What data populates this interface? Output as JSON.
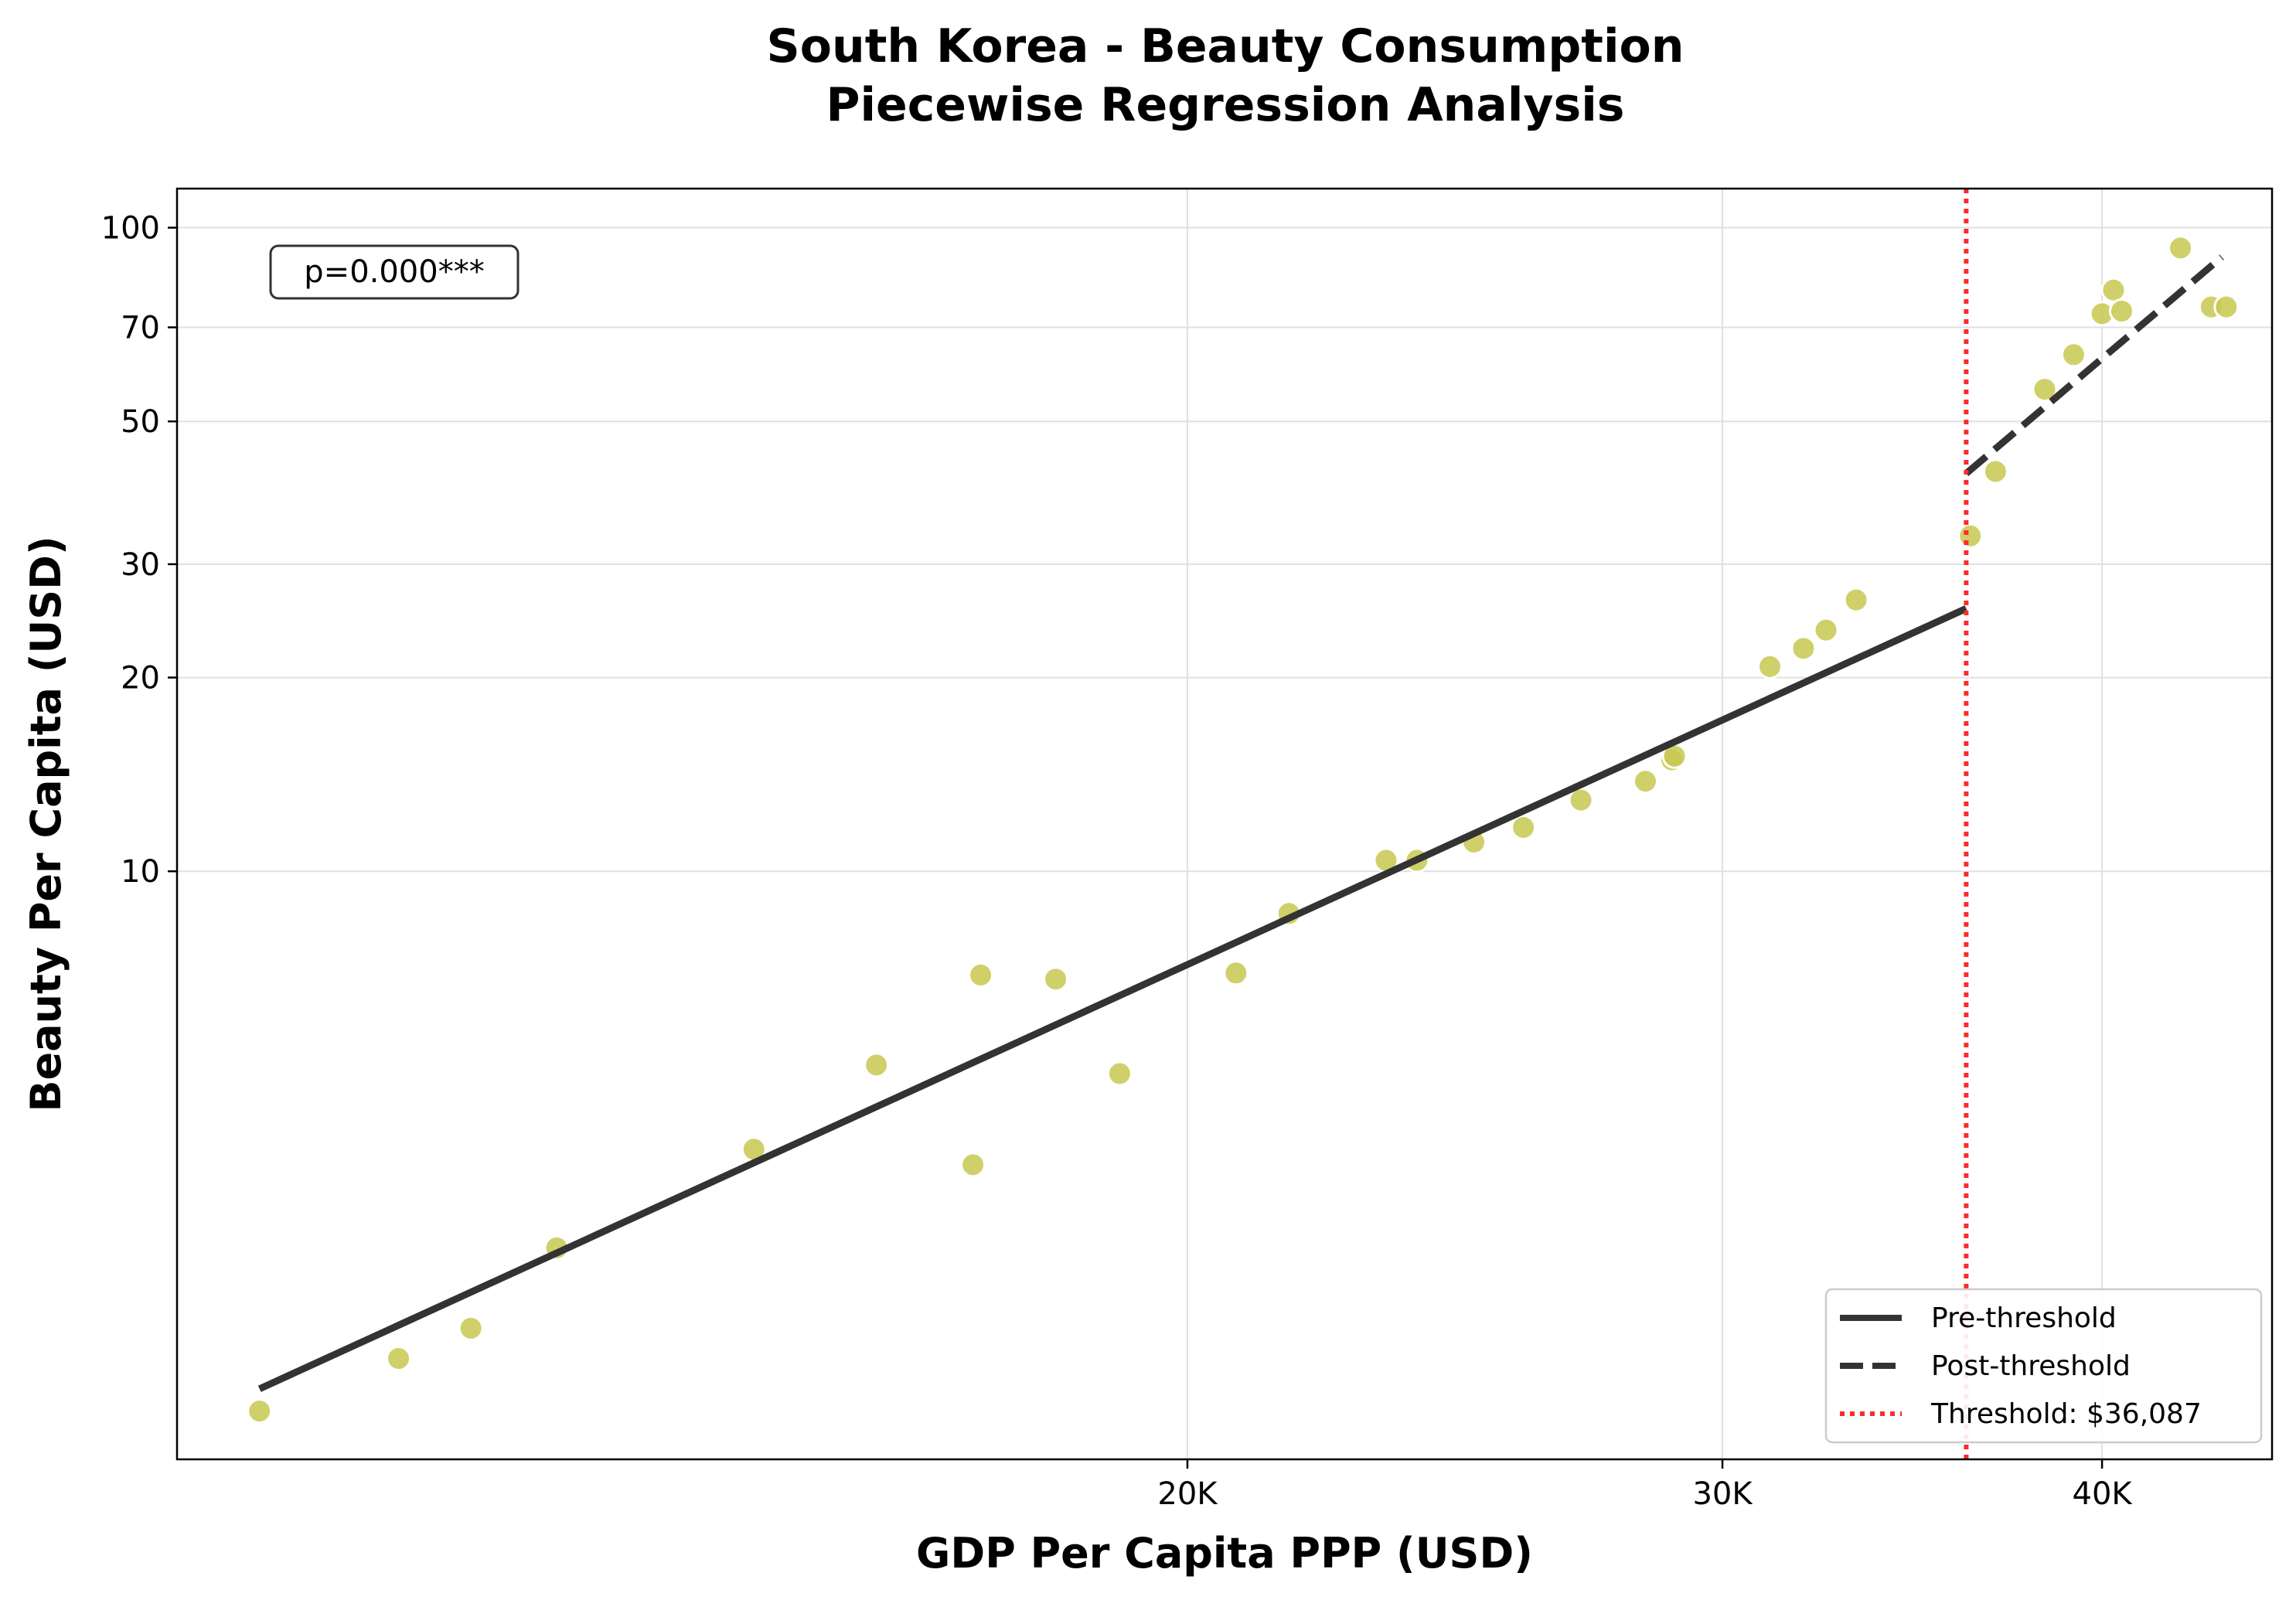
{
  "chart_data": {
    "type": "scatter",
    "title": [
      "South Korea - Beauty Consumption",
      "Piecewise Regression Analysis"
    ],
    "xlabel": "GDP Per Capita PPP (USD)",
    "ylabel": "Beauty Per Capita (USD)",
    "x_scale": "log",
    "y_scale": "log",
    "xlim": [
      9300,
      45500
    ],
    "ylim": [
      1.22,
      115
    ],
    "x_ticks": [
      {
        "value": 20000,
        "label": "20K"
      },
      {
        "value": 30000,
        "label": "30K"
      },
      {
        "value": 40000,
        "label": "40K"
      }
    ],
    "y_ticks": [
      {
        "value": 10,
        "label": "10"
      },
      {
        "value": 20,
        "label": "20"
      },
      {
        "value": 30,
        "label": "30"
      },
      {
        "value": 50,
        "label": "50"
      },
      {
        "value": 70,
        "label": "70"
      },
      {
        "value": 100,
        "label": "100"
      }
    ],
    "grid": true,
    "point_color": "#c8c850",
    "points": [
      {
        "x": 9900,
        "y": 1.45
      },
      {
        "x": 11000,
        "y": 1.75
      },
      {
        "x": 11620,
        "y": 1.95
      },
      {
        "x": 12400,
        "y": 2.6
      },
      {
        "x": 14400,
        "y": 3.7
      },
      {
        "x": 15800,
        "y": 5.0
      },
      {
        "x": 17000,
        "y": 3.5
      },
      {
        "x": 17100,
        "y": 6.9
      },
      {
        "x": 18100,
        "y": 6.8
      },
      {
        "x": 19000,
        "y": 4.85
      },
      {
        "x": 20750,
        "y": 6.95
      },
      {
        "x": 21600,
        "y": 8.6
      },
      {
        "x": 23250,
        "y": 10.4
      },
      {
        "x": 23800,
        "y": 10.4
      },
      {
        "x": 24850,
        "y": 11.1
      },
      {
        "x": 25800,
        "y": 11.7
      },
      {
        "x": 26950,
        "y": 12.9
      },
      {
        "x": 28300,
        "y": 13.8
      },
      {
        "x": 28870,
        "y": 14.9
      },
      {
        "x": 28930,
        "y": 15.1
      },
      {
        "x": 31100,
        "y": 20.8
      },
      {
        "x": 31900,
        "y": 22.2
      },
      {
        "x": 32450,
        "y": 23.7
      },
      {
        "x": 33200,
        "y": 26.4
      },
      {
        "x": 36200,
        "y": 33.2
      },
      {
        "x": 36900,
        "y": 41.8
      },
      {
        "x": 38300,
        "y": 56.1
      },
      {
        "x": 39150,
        "y": 63.5
      },
      {
        "x": 40000,
        "y": 73.5
      },
      {
        "x": 40350,
        "y": 80.0
      },
      {
        "x": 40600,
        "y": 74.2
      },
      {
        "x": 42450,
        "y": 93.0
      },
      {
        "x": 43450,
        "y": 75.3
      },
      {
        "x": 43950,
        "y": 75.3
      }
    ],
    "series": [
      {
        "name": "Pre-threshold",
        "style": "solid",
        "color": "#333333",
        "x": [
          9900,
          36087
        ],
        "y": [
          1.57,
          25.6
        ]
      },
      {
        "name": "Post-threshold",
        "style": "dashed",
        "color": "#333333",
        "x": [
          36087,
          43800
        ],
        "y": [
          41.5,
          90.0
        ]
      }
    ],
    "threshold": {
      "x": 36087,
      "name": "Threshold: $36,087",
      "color": "#ff2a2a",
      "style": "dotted"
    },
    "annotation": "p=0.000***",
    "legend_position": "lower right"
  }
}
